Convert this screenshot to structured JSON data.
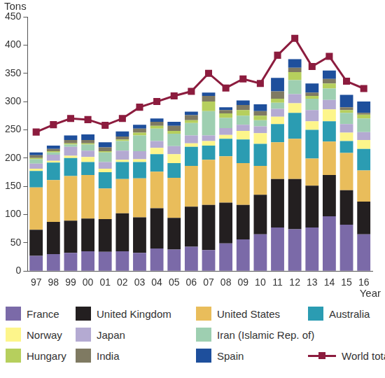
{
  "chart_data": {
    "type": "bar",
    "stacked": true,
    "grid": false,
    "legend": "bottom",
    "y_label": "Tons",
    "x_label": "Year",
    "categories": [
      "97",
      "98",
      "99",
      "00",
      "01",
      "02",
      "03",
      "04",
      "05",
      "06",
      "07",
      "08",
      "09",
      "10",
      "11",
      "12",
      "13",
      "14",
      "15",
      "16"
    ],
    "ylim": [
      0,
      450
    ],
    "yticks": [
      0,
      50,
      100,
      150,
      200,
      250,
      300,
      350,
      400,
      450
    ],
    "series": [
      {
        "name": "France",
        "color": "#7b6aa8",
        "values": [
          27,
          30,
          32,
          35,
          34,
          35,
          32,
          40,
          38,
          43,
          37,
          49,
          56,
          65,
          77,
          74,
          77,
          97,
          82,
          65
        ]
      },
      {
        "name": "United Kingdom",
        "color": "#231f20",
        "values": [
          46,
          57,
          57,
          58,
          58,
          67,
          63,
          71,
          56,
          71,
          80,
          72,
          61,
          70,
          86,
          89,
          74,
          73,
          61,
          58
        ]
      },
      {
        "name": "United States",
        "color": "#e9bd5b",
        "values": [
          75,
          74,
          79,
          77,
          54,
          61,
          69,
          65,
          71,
          72,
          80,
          82,
          74,
          51,
          65,
          71,
          48,
          59,
          66,
          55
        ]
      },
      {
        "name": "Australia",
        "color": "#2b9cb2",
        "values": [
          29,
          31,
          32,
          23,
          29,
          30,
          29,
          31,
          26,
          34,
          25,
          31,
          42,
          39,
          32,
          46,
          51,
          36,
          21,
          38
        ]
      },
      {
        "name": "Norway",
        "color": "#fdf58b",
        "values": [
          4,
          3,
          4,
          9,
          6,
          4,
          5,
          11,
          16,
          6,
          8,
          7,
          15,
          19,
          13,
          17,
          15,
          21,
          15,
          16
        ]
      },
      {
        "name": "Japan",
        "color": "#b4aad2",
        "values": [
          9,
          11,
          16,
          11,
          12,
          16,
          14,
          12,
          14,
          14,
          10,
          12,
          11,
          12,
          14,
          16,
          20,
          17,
          15,
          14
        ]
      },
      {
        "name": "Iran (Islamic Rep. of)",
        "color": "#9ecfb1",
        "values": [
          8,
          4,
          4,
          11,
          17,
          17,
          28,
          22,
          22,
          22,
          43,
          18,
          16,
          11,
          11,
          25,
          20,
          20,
          20,
          24
        ]
      },
      {
        "name": "Hungary",
        "color": "#b6cf5d",
        "values": [
          2,
          2,
          2,
          2,
          2,
          3,
          5,
          5,
          5,
          5,
          17,
          8,
          10,
          8,
          7,
          14,
          5,
          9,
          5,
          7
        ]
      },
      {
        "name": "India",
        "color": "#7f7a62",
        "values": [
          5,
          4,
          6,
          6,
          7,
          5,
          7,
          7,
          9,
          9,
          10,
          6,
          9,
          8,
          13,
          8,
          6,
          8,
          5,
          3
        ]
      },
      {
        "name": "Spain",
        "color": "#1e4f9c",
        "values": [
          5,
          6,
          8,
          10,
          9,
          9,
          7,
          6,
          7,
          6,
          6,
          5,
          8,
          12,
          24,
          15,
          16,
          15,
          22,
          20
        ]
      },
      {
        "name": "World total",
        "type": "line",
        "marker": "square",
        "color": "#8c1c3e",
        "values": [
          246,
          259,
          270,
          268,
          258,
          270,
          290,
          300,
          310,
          318,
          350,
          324,
          340,
          332,
          382,
          412,
          362,
          380,
          336,
          323
        ]
      }
    ]
  }
}
